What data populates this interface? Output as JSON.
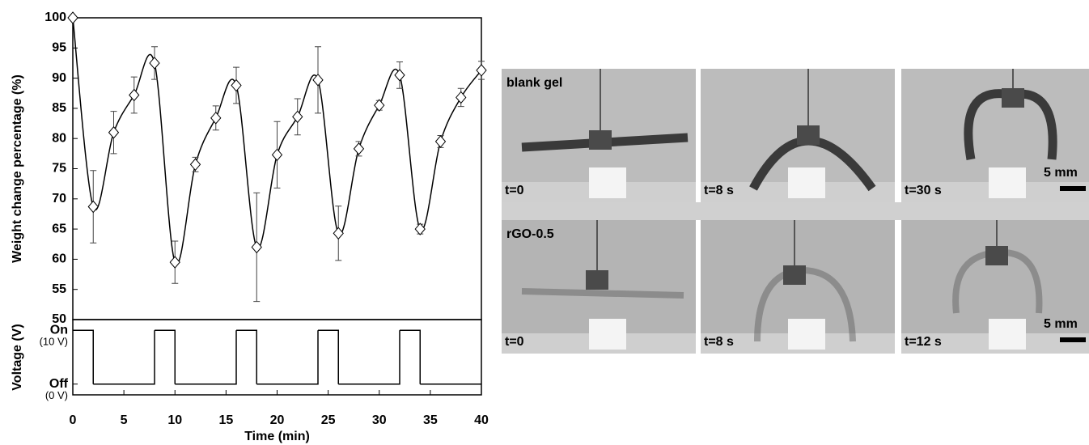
{
  "chart_data": [
    {
      "type": "line",
      "y_label": "Weight change percentage (%)",
      "x": [
        0,
        2,
        4,
        6,
        8,
        10,
        12,
        14,
        16,
        18,
        20,
        22,
        24,
        26,
        28,
        30,
        32,
        34,
        36,
        38,
        40
      ],
      "values": [
        100,
        68.7,
        81,
        87.2,
        92.5,
        59.5,
        75.7,
        83.4,
        88.8,
        62,
        77.3,
        83.6,
        89.7,
        64.3,
        78.3,
        85.5,
        90.5,
        65,
        79.5,
        86.8,
        91.3
      ],
      "errors": [
        0,
        6,
        3.5,
        3,
        2.7,
        3.5,
        1.2,
        2,
        3,
        9,
        5.5,
        3,
        5.5,
        4.5,
        1.2,
        0.8,
        2.2,
        0.8,
        1,
        1.5,
        1.5
      ],
      "color": "#000000",
      "xlim": [
        0,
        40
      ],
      "ylim": [
        50,
        100
      ],
      "yticks": [
        50,
        55,
        60,
        65,
        70,
        75,
        80,
        85,
        90,
        95,
        100
      ]
    },
    {
      "type": "step",
      "y_label": "Voltage (V)",
      "x_label": "Time (min)",
      "x": [
        0,
        2,
        8,
        10,
        16,
        18,
        24,
        26,
        32,
        34
      ],
      "values": [
        10,
        0,
        10,
        0,
        10,
        0,
        10,
        0,
        10,
        0
      ],
      "color": "#000000",
      "xlim": [
        0,
        40
      ],
      "xticks": [
        0,
        5,
        10,
        15,
        20,
        25,
        30,
        35,
        40
      ],
      "ylim": [
        -2,
        12
      ],
      "yticks": [
        {
          "value": 10,
          "label": "On",
          "note": "(10 V)"
        },
        {
          "value": 0,
          "label": "Off",
          "note": "(0 V)"
        }
      ]
    }
  ],
  "photos": {
    "rows": [
      {
        "label": "blank gel",
        "panels": [
          {
            "time": "t=0"
          },
          {
            "time": "t=8 s"
          },
          {
            "time": "t=30 s"
          }
        ]
      },
      {
        "label": "rGO-0.5",
        "panels": [
          {
            "time": "t=0"
          },
          {
            "time": "t=8 s"
          },
          {
            "time": "t=12 s"
          }
        ]
      }
    ],
    "scale_bar": "5 mm"
  }
}
